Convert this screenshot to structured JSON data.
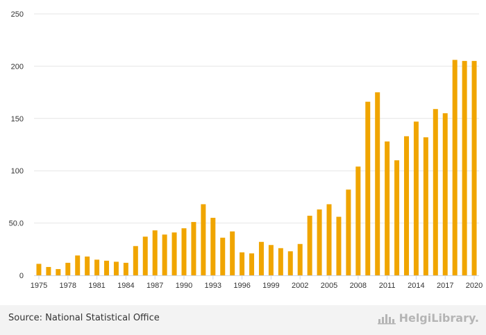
{
  "chart_data": {
    "type": "bar",
    "categories": [
      "1975",
      "1976",
      "1977",
      "1978",
      "1979",
      "1980",
      "1981",
      "1982",
      "1983",
      "1984",
      "1985",
      "1986",
      "1987",
      "1988",
      "1989",
      "1990",
      "1991",
      "1992",
      "1993",
      "1994",
      "1995",
      "1996",
      "1997",
      "1998",
      "1999",
      "2000",
      "2001",
      "2002",
      "2003",
      "2004",
      "2005",
      "2006",
      "2007",
      "2008",
      "2009",
      "2010",
      "2011",
      "2012",
      "2013",
      "2014",
      "2015",
      "2016",
      "2017",
      "2018",
      "2019",
      "2020"
    ],
    "values": [
      11,
      8,
      6,
      12,
      19,
      18,
      15,
      14,
      13,
      12,
      28,
      37,
      43,
      39,
      41,
      45,
      51,
      68,
      55,
      36,
      42,
      22,
      21,
      32,
      29,
      26,
      23,
      30,
      57,
      63,
      68,
      56,
      82,
      104,
      166,
      175,
      128,
      110,
      133,
      147,
      132,
      159,
      155,
      206,
      205,
      205
    ],
    "x_tick_labels": [
      "1975",
      "1978",
      "1981",
      "1984",
      "1987",
      "1990",
      "1993",
      "1996",
      "1999",
      "2002",
      "2005",
      "2008",
      "2011",
      "2014",
      "2017",
      "2020"
    ],
    "y_tick_labels": [
      "0",
      "50.0",
      "100",
      "150",
      "200",
      "250"
    ],
    "y_ticks": [
      0,
      50,
      100,
      150,
      200,
      250
    ],
    "ylim": [
      0,
      250
    ],
    "bar_color": "#f0a500",
    "grid": true,
    "title": "",
    "xlabel": "",
    "ylabel": ""
  },
  "footer": {
    "source": "Source: National Statistical Office",
    "brand": "HelgiLibrary."
  },
  "colors": {
    "gridline": "#e6e6e6",
    "axis": "#ccd6eb",
    "footer_bg": "#f3f3f3",
    "brand": "#b5b5b5"
  },
  "icons": {
    "brand_logo": "helgi-library-logo-icon"
  }
}
